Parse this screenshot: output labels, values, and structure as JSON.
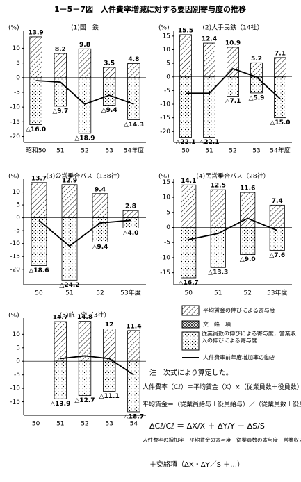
{
  "title": "1－5－7図　人件費率増減に対する要因別寄与度の推移",
  "chart_data": [
    {
      "type": "bar",
      "title": "(1)国　鉄",
      "y_unit": "(%)",
      "categories": [
        "昭和50",
        "51",
        "52",
        "53",
        "54年度"
      ],
      "series": [
        {
          "color": "#000000",
          "values": [
            13.9,
            8.2,
            9.8,
            3.5,
            4.8
          ]
        },
        {
          "color": "#000000",
          "values": [
            -16.0,
            -9.7,
            -18.9,
            -9.4,
            -14.3
          ],
          "value_labels": [
            "△16.0",
            "△9.7",
            "△18.9",
            "△9.4",
            "△14.3"
          ]
        },
        {
          "type": "line",
          "color": "#000000",
          "values": [
            -1,
            -1.5,
            -9,
            -6,
            -9
          ]
        }
      ],
      "ylim": [
        -22,
        16
      ],
      "yticks": [
        10,
        5,
        0,
        -5,
        -10,
        -15,
        -20
      ]
    },
    {
      "type": "bar",
      "title": "(2)大手民鉄（14社）",
      "y_unit": "(%)",
      "categories": [
        "50",
        "51",
        "52",
        "53",
        "54年度"
      ],
      "series": [
        {
          "color": "#000000",
          "values": [
            15.5,
            12.4,
            10.9,
            5.2,
            7.1
          ]
        },
        {
          "color": "#000000",
          "values": [
            -22.1,
            -22.1,
            -7.1,
            -5.9,
            -15.0
          ],
          "value_labels": [
            "△22.1",
            "△22.1",
            "△7.1",
            "△5.9",
            "△15.0"
          ]
        },
        {
          "type": "line",
          "color": "#000000",
          "values": [
            -6,
            -6,
            3,
            0,
            -8
          ]
        }
      ],
      "ylim": [
        -24,
        17
      ],
      "yticks": [
        15,
        10,
        5,
        0,
        -5,
        -10,
        -15,
        -20
      ]
    },
    {
      "type": "bar",
      "title": "(3)公営乗合バス（138社）",
      "y_unit": "(%)",
      "categories": [
        "50",
        "51",
        "52",
        "53年度"
      ],
      "series": [
        {
          "color": "#000000",
          "values": [
            13.7,
            12.9,
            9.4,
            2.8
          ]
        },
        {
          "color": "#000000",
          "values": [
            -18.6,
            -24.2,
            -9.4,
            -4.0
          ],
          "value_labels": [
            "△18.6",
            "△24.2",
            "△9.4",
            "△4.0"
          ]
        },
        {
          "type": "line",
          "color": "#000000",
          "values": [
            -1,
            -11,
            -2,
            -1
          ]
        }
      ],
      "ylim": [
        -26,
        15
      ],
      "yticks": [
        10,
        5,
        0,
        -5,
        -10,
        -15,
        -20
      ]
    },
    {
      "type": "bar",
      "title": "(4)民営乗合バス（28社）",
      "y_unit": "(%)",
      "categories": [
        "50",
        "51",
        "52",
        "53年度"
      ],
      "series": [
        {
          "color": "#000000",
          "values": [
            14.1,
            12.5,
            11.6,
            7.4
          ]
        },
        {
          "color": "#000000",
          "values": [
            -16.7,
            -13.3,
            -9.0,
            -7.6
          ],
          "value_labels": [
            "△16.7",
            "△13.3",
            "△9.0",
            "△7.6"
          ]
        },
        {
          "type": "line",
          "color": "#000000",
          "values": [
            -4,
            -2,
            3,
            -1
          ]
        }
      ],
      "ylim": [
        -19,
        16
      ],
      "yticks": [
        15,
        10,
        5,
        0,
        -5,
        -10,
        -15
      ]
    },
    {
      "type": "bar",
      "title": "(5)航　空（3社）",
      "y_unit": "(%)",
      "categories": [
        "50",
        "51",
        "52",
        "53",
        "54"
      ],
      "series": [
        {
          "color": "#000000",
          "values": [
            null,
            14.7,
            14.8,
            12.0,
            11.4
          ]
        },
        {
          "color": "#000000",
          "values": [
            null,
            -13.9,
            -12.7,
            -11.1,
            -18.7
          ],
          "value_labels": [
            null,
            "△13.9",
            "△12.7",
            "△11.1",
            "△18.7"
          ]
        },
        {
          "type": "line",
          "color": "#000000",
          "values": [
            null,
            1,
            2,
            1,
            -5
          ]
        }
      ],
      "ylim": [
        -20,
        16
      ],
      "yticks": [
        10,
        5,
        0,
        -5,
        -10,
        -15
      ]
    }
  ],
  "legend": [
    "平均賃金の伸びによる寄与度",
    "交　絡　項",
    "従業員数の伸びによる寄与度，営業収入の伸びによる寄与度",
    "人件費率前年度増加率の動き"
  ],
  "note": [
    "注　次式により算定した。",
    "人件費率（Cℓ）＝平均賃金（X）×（従業員数＋役員数）／営業収入（S）",
    "平均賃金＝（従業員給与＋役員給与）／（従業員数＋役員数）とした。",
    "ΔCℓ/Cℓ ＝ ΔX/X ＋ ΔY/Y － ΔS/S",
    "人件費率の増加率　平均賃金の寄与度　従業員数の寄与度　営業収入の寄与度",
    "＋交絡項（ΔX・ΔY／S ＋…）"
  ]
}
